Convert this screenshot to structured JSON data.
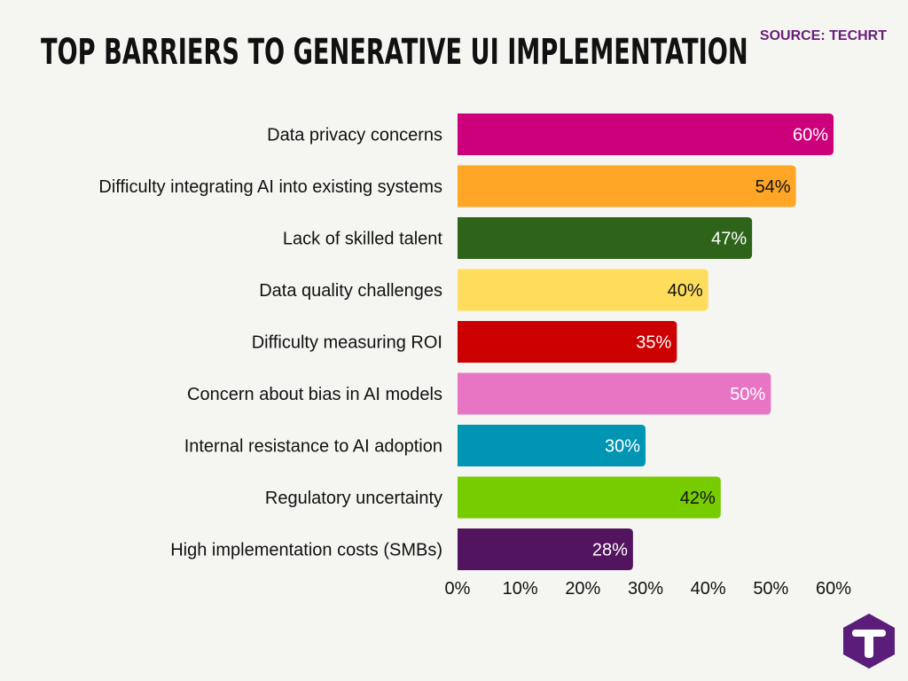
{
  "title": "TOP BARRIERS TO GENERATIVE UI IMPLEMENTATION",
  "source": "SOURCE: TECHRT",
  "logo": {
    "icon": "techrt-logo-icon",
    "letter": "T",
    "color": "#5a1d7a"
  },
  "chart_data": {
    "type": "bar",
    "orientation": "horizontal",
    "categories": [
      "Data privacy concerns",
      "Difficulty integrating AI into existing systems",
      "Lack of skilled talent",
      "Data quality challenges",
      "Difficulty measuring ROI",
      "Concern about bias in AI models",
      "Internal resistance to AI adoption",
      "Regulatory uncertainty",
      "High implementation costs (SMBs)"
    ],
    "values": [
      60,
      54,
      47,
      40,
      35,
      50,
      30,
      42,
      28
    ],
    "value_labels": [
      "60%",
      "54%",
      "47%",
      "40%",
      "35%",
      "50%",
      "30%",
      "42%",
      "28%"
    ],
    "colors": [
      "#cc007a",
      "#ffa626",
      "#2e6419",
      "#ffdd5c",
      "#cc0000",
      "#e875c3",
      "#0095b3",
      "#77cc00",
      "#52145e"
    ],
    "label_colors": [
      "#ffffff",
      "#111111",
      "#ffffff",
      "#111111",
      "#ffffff",
      "#ffffff",
      "#ffffff",
      "#111111",
      "#ffffff"
    ],
    "xlim": [
      0,
      60
    ],
    "xticks": [
      0,
      10,
      20,
      30,
      40,
      50,
      60
    ],
    "xtick_labels": [
      "0%",
      "10%",
      "20%",
      "30%",
      "40%",
      "50%",
      "60%"
    ],
    "xlabel": "",
    "ylabel": "",
    "grid": false,
    "legend": "none"
  }
}
